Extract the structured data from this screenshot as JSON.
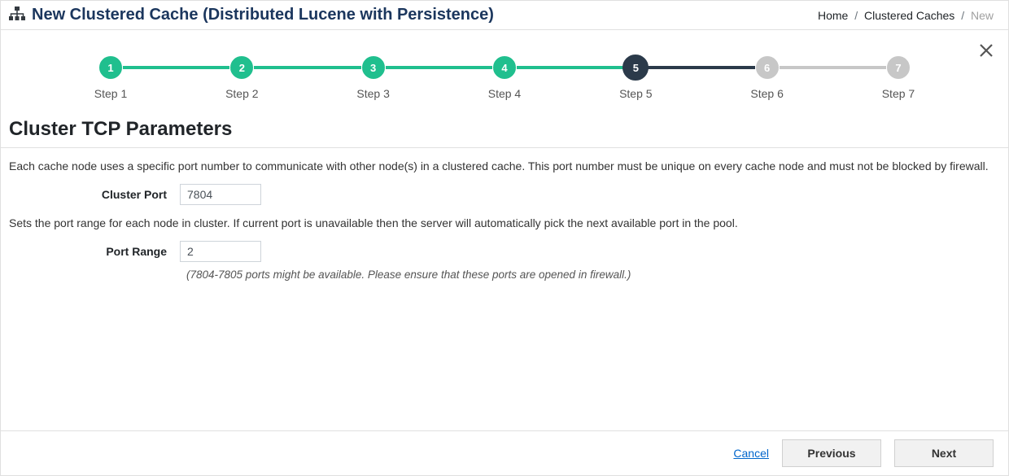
{
  "header": {
    "title": "New Clustered Cache (Distributed Lucene with Persistence)",
    "title_color": "#1b365d"
  },
  "breadcrumb": {
    "items": [
      "Home",
      "Clustered Caches",
      "New"
    ],
    "separator": "/"
  },
  "stepper": {
    "steps": [
      {
        "num": "1",
        "label": "Step 1",
        "state": "done"
      },
      {
        "num": "2",
        "label": "Step 2",
        "state": "done"
      },
      {
        "num": "3",
        "label": "Step 3",
        "state": "done"
      },
      {
        "num": "4",
        "label": "Step 4",
        "state": "done"
      },
      {
        "num": "5",
        "label": "Step 5",
        "state": "current"
      },
      {
        "num": "6",
        "label": "Step 6",
        "state": "future"
      },
      {
        "num": "7",
        "label": "Step 7",
        "state": "future"
      }
    ],
    "colors": {
      "done": "#20bf8e",
      "current": "#2b3a4a",
      "future": "#c7c7c7"
    }
  },
  "section": {
    "heading": "Cluster TCP Parameters",
    "desc1": "Each cache node uses a specific port number to communicate with other node(s) in a clustered cache. This port number must be unique on every cache node and must not be blocked by firewall.",
    "cluster_port_label": "Cluster Port",
    "cluster_port_value": "7804",
    "desc2": "Sets the port range for each node in cluster. If current port is unavailable then the server will automatically pick the next available port in the pool.",
    "port_range_label": "Port Range",
    "port_range_value": "2",
    "hint": "(7804-7805 ports might be available. Please ensure that these ports are opened in firewall.)"
  },
  "footer": {
    "cancel": "Cancel",
    "previous": "Previous",
    "next": "Next"
  }
}
